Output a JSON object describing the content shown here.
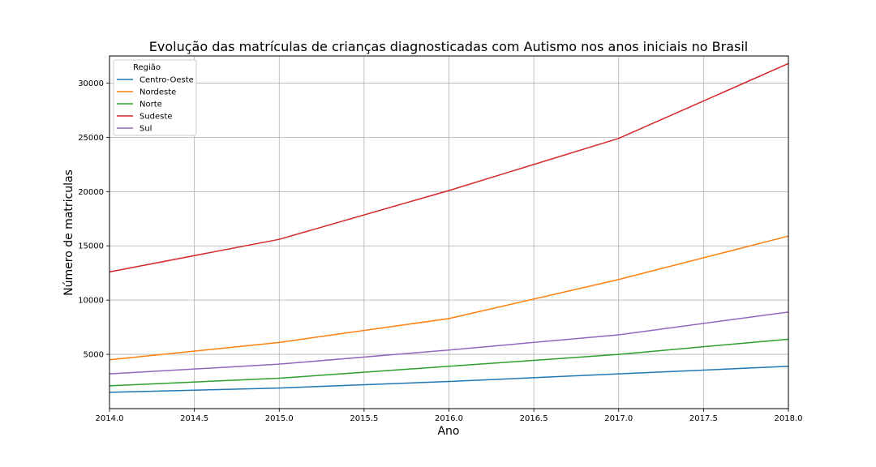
{
  "chart_data": {
    "type": "line",
    "title": "Evolução das matrículas de crianças diagnosticadas com Autismo nos anos iniciais no Brasil",
    "xlabel": "Ano",
    "ylabel": "Número de matriculas",
    "x": [
      2014,
      2015,
      2016,
      2017,
      2018
    ],
    "xlim": [
      2014.0,
      2018.0
    ],
    "ylim": [
      0,
      32500
    ],
    "x_ticks": [
      "2014.0",
      "2014.5",
      "2015.0",
      "2015.5",
      "2016.0",
      "2016.5",
      "2017.0",
      "2017.5",
      "2018.0"
    ],
    "y_ticks": [
      "5000",
      "10000",
      "15000",
      "20000",
      "25000",
      "30000"
    ],
    "grid": true,
    "legend": {
      "title": "Região",
      "placement": "top-left"
    },
    "series": [
      {
        "name": "Centro-Oeste",
        "color": "#1f77b4",
        "values": [
          1500,
          1900,
          2500,
          3200,
          3900
        ]
      },
      {
        "name": "Nordeste",
        "color": "#ff7f0e",
        "values": [
          4500,
          6100,
          8300,
          11900,
          15900
        ]
      },
      {
        "name": "Norte",
        "color": "#2ca02c",
        "values": [
          2100,
          2800,
          3900,
          5000,
          6400
        ]
      },
      {
        "name": "Sudeste",
        "color": "#d62728",
        "values": [
          12600,
          15600,
          20100,
          24900,
          31800
        ]
      },
      {
        "name": "Sul",
        "color": "#9467bd",
        "values": [
          3200,
          4100,
          5400,
          6800,
          8900
        ]
      }
    ]
  }
}
